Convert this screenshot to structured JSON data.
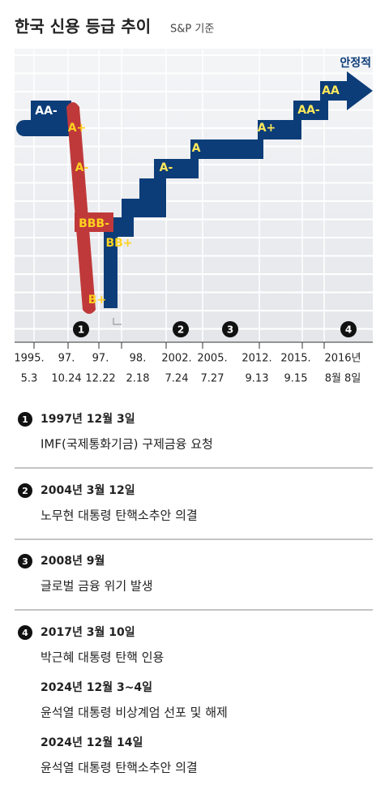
{
  "header": {
    "title": "한국 신용 등급 추이",
    "subtitle": "S&P 기준"
  },
  "chart": {
    "outlook": "안정적",
    "ratings": [
      "AA-",
      "A+",
      "A-",
      "BBB-",
      "B+",
      "BB+",
      "A-",
      "A",
      "A+",
      "AA-",
      "AA"
    ],
    "dates": [
      {
        "year": "1995.",
        "day": "5.3"
      },
      {
        "year": "97.",
        "day": "10.24"
      },
      {
        "year": "97.",
        "day": "12.22"
      },
      {
        "year": "98.",
        "day": "2.18"
      },
      {
        "year": "2002.",
        "day": "7.24"
      },
      {
        "year": "2005.",
        "day": "7.27"
      },
      {
        "year": "2012.",
        "day": "9.13"
      },
      {
        "year": "2015.",
        "day": "9.15"
      },
      {
        "year": "2016년",
        "day": "8월 8일"
      }
    ]
  },
  "events": [
    {
      "number": "1",
      "items": [
        {
          "date": "1997년 12월 3일",
          "text": "IMF(국제통화기금) 구제금융 요청"
        }
      ]
    },
    {
      "number": "2",
      "items": [
        {
          "date": "2004년 3월 12일",
          "text": "노무현 대통령 탄핵소추안 의결"
        }
      ]
    },
    {
      "number": "3",
      "items": [
        {
          "date": "2008년 9월",
          "text": "글로벌 금융 위기 발생"
        }
      ]
    },
    {
      "number": "4",
      "items": [
        {
          "date": "2017년 3월 10일",
          "text": "박근혜 대통령 탄핵 인용"
        },
        {
          "date": "2024년 12월 3~4일",
          "text": "윤석열 대통령 비상계엄 선포 및 해제"
        },
        {
          "date": "2024년 12월 14일",
          "text": "윤석열 대통령 탄핵소추안 의결"
        }
      ]
    }
  ]
}
